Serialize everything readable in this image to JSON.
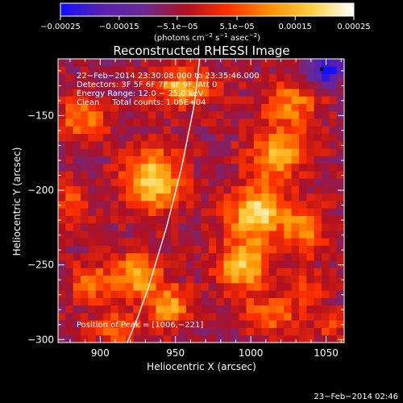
{
  "chart_data": {
    "type": "heatmap",
    "title": "Reconstructed RHESSI Image",
    "xlabel": "Heliocentric X (arcsec)",
    "ylabel": "Heliocentric Y (arcsec)",
    "xlim": [
      872,
      1062
    ],
    "ylim": [
      -302,
      -112
    ],
    "x_ticks": [
      900,
      950,
      1000,
      1050
    ],
    "x_tick_labels": [
      "900",
      "950",
      "1000",
      "1050"
    ],
    "y_ticks": [
      -150,
      -200,
      -250,
      -300
    ],
    "y_tick_labels": [
      "−150",
      "−200",
      "−250",
      "−300"
    ],
    "colorbar": {
      "range": [
        -0.00025,
        0.00025
      ],
      "tick_values": [
        -0.00025,
        -0.00015,
        -5.1e-05,
        5.1e-05,
        0.00015,
        0.00025
      ],
      "tick_labels": [
        "−0.00025",
        "−0.00015",
        "−5.1e−05",
        "5.1e−05",
        "0.00015",
        "0.00025"
      ],
      "units_prefix": "(photons cm",
      "units_exp1": "−2",
      "units_middle": " s",
      "units_exp2": "−1",
      "units_after": " asec",
      "units_exp3": "−2",
      "units_suffix": ")",
      "colors": [
        "#1010ff",
        "#5a20b0",
        "#6a2a90",
        "#b01020",
        "#ff3000",
        "#ff9000",
        "#ffd040",
        "#ffffff"
      ]
    },
    "annotations": [
      "22−Feb−2014 23:30:08.000 to 23:35:46.000",
      "Detectors: 3F 5F 6F 7F 8F 9F, Att 0",
      "Energy Range: 12.0 − 25.0 keV",
      "Clean     Total counts: 1.05E+04"
    ],
    "peak_label": "Position of Peak = [1006,−221]",
    "peak": [
      1006,
      -221
    ],
    "sources": [
      {
        "x": 935,
        "y": -193,
        "amp": 0.00024,
        "sx": 13,
        "sy": 14
      },
      {
        "x": 955,
        "y": -131,
        "amp": 0.00018,
        "sx": 14,
        "sy": 9
      },
      {
        "x": 888,
        "y": -152,
        "amp": 0.00014,
        "sx": 11,
        "sy": 10
      },
      {
        "x": 925,
        "y": -256,
        "amp": 0.0002,
        "sx": 10,
        "sy": 10
      },
      {
        "x": 895,
        "y": -262,
        "amp": 0.00013,
        "sx": 11,
        "sy": 9
      },
      {
        "x": 946,
        "y": -277,
        "amp": 0.00018,
        "sx": 10,
        "sy": 9
      },
      {
        "x": 912,
        "y": -292,
        "amp": 0.00012,
        "sx": 11,
        "sy": 7
      },
      {
        "x": 1018,
        "y": -175,
        "amp": 0.00019,
        "sx": 13,
        "sy": 12
      },
      {
        "x": 1004,
        "y": -215,
        "amp": 0.00025,
        "sx": 13,
        "sy": 12
      },
      {
        "x": 995,
        "y": -250,
        "amp": 0.00021,
        "sx": 12,
        "sy": 12
      },
      {
        "x": 1027,
        "y": -142,
        "amp": 0.00014,
        "sx": 13,
        "sy": 10
      },
      {
        "x": 1036,
        "y": -226,
        "amp": 0.00015,
        "sx": 10,
        "sy": 12
      },
      {
        "x": 1014,
        "y": -283,
        "amp": 0.00013,
        "sx": 13,
        "sy": 9
      },
      {
        "x": 1040,
        "y": -266,
        "amp": 9e-05,
        "sx": 8,
        "sy": 7
      },
      {
        "x": 1052,
        "y": -290,
        "amp": 0.0001,
        "sx": 7,
        "sy": 7
      },
      {
        "x": 880,
        "y": -210,
        "amp": 0.0001,
        "sx": 8,
        "sy": 12
      },
      {
        "x": 1050,
        "y": -118,
        "amp": -0.0002,
        "sx": 9,
        "sy": 8
      }
    ],
    "limb_curve": [
      [
        918,
        -302
      ],
      [
        925,
        -285
      ],
      [
        932,
        -265
      ],
      [
        938,
        -245
      ],
      [
        944,
        -225
      ],
      [
        949,
        -205
      ],
      [
        954,
        -185
      ],
      [
        958,
        -165
      ],
      [
        962,
        -145
      ],
      [
        964,
        -130
      ],
      [
        966,
        -112
      ]
    ],
    "timestamp": "23−Feb−2014 02:46"
  }
}
